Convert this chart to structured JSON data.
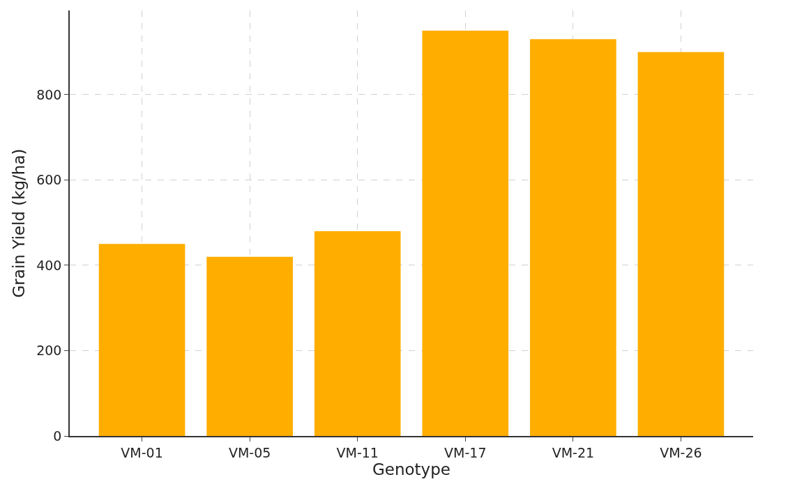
{
  "chart_data": {
    "type": "bar",
    "xlabel": "Genotype",
    "ylabel": "Grain Yield (kg/ha)",
    "categories": [
      "VM-01",
      "VM-05",
      "VM-11",
      "VM-17",
      "VM-21",
      "VM-26"
    ],
    "values": [
      450,
      420,
      480,
      950,
      930,
      900
    ],
    "color": "#ffae00",
    "ylim": [
      0,
      997.5
    ],
    "yticks": [
      0,
      200,
      400,
      600,
      800
    ],
    "grid": true
  }
}
